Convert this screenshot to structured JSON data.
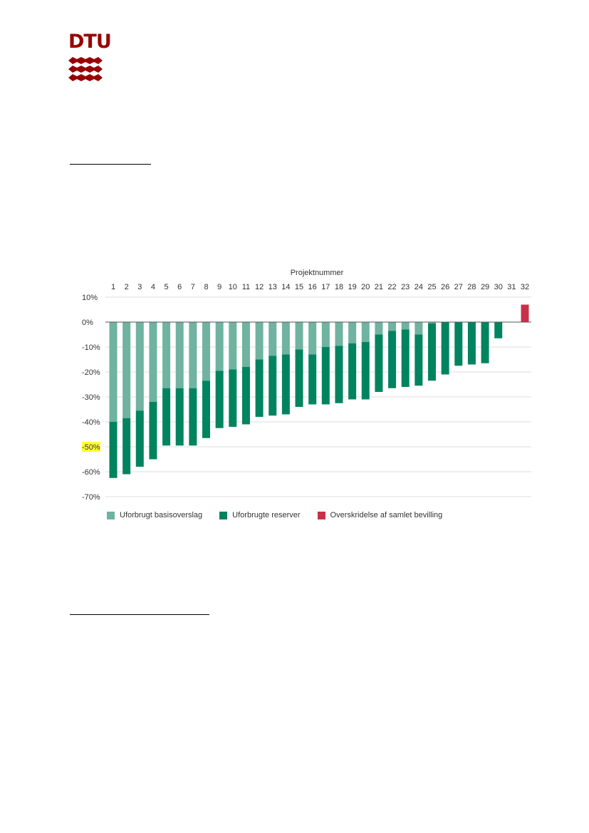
{
  "logo": {
    "text": "DTU"
  },
  "colors": {
    "light": "#6fb3a0",
    "dark": "#00845f",
    "red": "#c8304a",
    "grid": "#dddddd",
    "zero": "#555555",
    "highlight": "#ffff33"
  },
  "chart_data": {
    "type": "bar",
    "title": "Projektnummer",
    "categories": [
      "1",
      "2",
      "3",
      "4",
      "5",
      "6",
      "7",
      "8",
      "9",
      "10",
      "11",
      "12",
      "13",
      "14",
      "15",
      "16",
      "17",
      "18",
      "19",
      "20",
      "21",
      "22",
      "23",
      "24",
      "25",
      "26",
      "27",
      "28",
      "29",
      "30",
      "31",
      "32"
    ],
    "y_ticks": [
      "10%",
      "0%",
      "-10%",
      "-20%",
      "-30%",
      "-40%",
      "-50%",
      "-60%",
      "-70%"
    ],
    "y_tick_values": [
      10,
      0,
      -10,
      -20,
      -30,
      -40,
      -50,
      -60,
      -70
    ],
    "ylim": [
      -70,
      10
    ],
    "highlighted_tick": "-50%",
    "series": [
      {
        "name": "Uforbrugt basisoverslag",
        "color_key": "light",
        "values": [
          -40,
          -38.5,
          -35.5,
          -32,
          -26.5,
          -26.5,
          -26.5,
          -23.5,
          -19.5,
          -19,
          -18,
          -15,
          -13.5,
          -13,
          -11,
          -13,
          -10,
          -9.5,
          -8.5,
          -8,
          -5,
          -3.5,
          -3,
          -5,
          -0.5,
          0,
          0,
          0,
          0,
          0,
          0,
          0
        ]
      },
      {
        "name": "Uforbrugte reserver",
        "color_key": "dark",
        "values": [
          -22.5,
          -22.5,
          -22.5,
          -23,
          -23,
          -23,
          -23,
          -23,
          -23,
          -23,
          -23,
          -23,
          -24,
          -24,
          -23,
          -20,
          -23,
          -23,
          -22.5,
          -23,
          -23,
          -23,
          -23,
          -20.5,
          -23,
          -21,
          -17.5,
          -17,
          -16.5,
          -6.5,
          0,
          0
        ]
      },
      {
        "name": "Overskridelse af samlet bevilling",
        "color_key": "red",
        "values": [
          0,
          0,
          0,
          0,
          0,
          0,
          0,
          0,
          0,
          0,
          0,
          0,
          0,
          0,
          0,
          0,
          0,
          0,
          0,
          0,
          0,
          0,
          0,
          0,
          0,
          0,
          0,
          0,
          0,
          0,
          0,
          7
        ]
      }
    ],
    "legend_position": "bottom-left",
    "grid": true
  }
}
